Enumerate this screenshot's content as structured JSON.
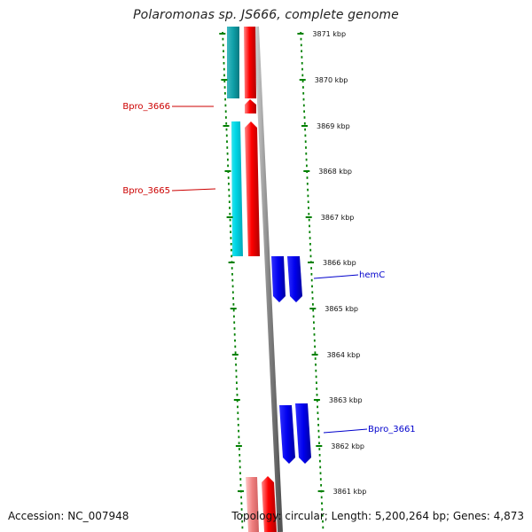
{
  "header": {
    "title": "Polaromonas sp. JS666, complete genome"
  },
  "footer": {
    "accession": "Accession: NC_007948",
    "summary": "Topology: circular; Length: 5,200,264 bp; Genes: 4,873"
  },
  "colors": {
    "forward_gene": "#ff0000",
    "reverse_gene": "#00c8d8",
    "forward_alt": "#0000ff",
    "label_red": "#cc0000",
    "label_blue": "#0000cc",
    "tick": "#008000",
    "backbone": "#888888"
  },
  "map": {
    "tick_labels": [
      {
        "kbp": 3871,
        "text": "3871 kbp"
      },
      {
        "kbp": 3870,
        "text": "3870 kbp"
      },
      {
        "kbp": 3869,
        "text": "3869 kbp"
      },
      {
        "kbp": 3868,
        "text": "3868 kbp"
      },
      {
        "kbp": 3867,
        "text": "3867 kbp"
      },
      {
        "kbp": 3866,
        "text": "3866 kbp"
      },
      {
        "kbp": 3865,
        "text": "3865 kbp"
      },
      {
        "kbp": 3864,
        "text": "3864 kbp"
      },
      {
        "kbp": 3863,
        "text": "3863 kbp"
      },
      {
        "kbp": 3862,
        "text": "3862 kbp"
      },
      {
        "kbp": 3861,
        "text": "3861 kbp"
      }
    ],
    "gene_labels": [
      {
        "name": "Bpro_3666",
        "color": "red"
      },
      {
        "name": "Bpro_3665",
        "color": "red"
      },
      {
        "name": "hemC",
        "color": "blue"
      },
      {
        "name": "Bpro_3661",
        "color": "blue"
      }
    ]
  }
}
